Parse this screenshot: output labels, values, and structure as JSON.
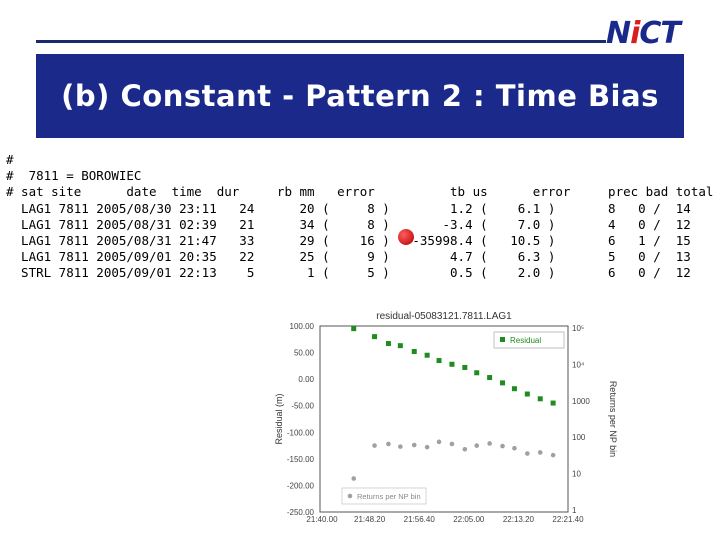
{
  "logo": {
    "text_pre": "N",
    "text_dot": "i",
    "text_post": "CT"
  },
  "title": "(b) Constant - Pattern 2 : Time Bias",
  "table_lines": [
    "#",
    "#  7811 = BOROWIEC",
    "# sat site      date  time  dur     rb mm   error          tb us      error     prec bad total",
    "  LAG1 7811 2005/08/30 23:11   24      20 (     8 )        1.2 (    6.1 )       8   0 /  14",
    "  LAG1 7811 2005/08/31 02:39   21      34 (     8 )       -3.4 (    7.0 )       4   0 /  12",
    "  LAG1 7811 2005/08/31 21:47   33      29 (    16 )   -35998.4 (   10.5 )       6   1 /  15",
    "  LAG1 7811 2005/09/01 20:35   22      25 (     9 )        4.7 (    6.3 )       5   0 /  13",
    "  STRL 7811 2005/09/01 22:13    5       1 (     5 )        0.5 (    2.0 )       6   0 /  12"
  ],
  "chart_data": {
    "type": "scatter",
    "title": "residual-05083121.7811.LAG1",
    "ylabel": "Residual (m)",
    "y2label": "Returns per NP bin",
    "xticks": [
      "21:40.00",
      "21:48.20",
      "21:56.40",
      "22:05.00",
      "22:13.20",
      "22:21.40"
    ],
    "yticks": [
      100,
      50,
      0,
      -50,
      -100,
      -150,
      -200,
      -250
    ],
    "y2ticks": [
      "10⁵",
      "10⁴",
      "1000",
      "100",
      "10",
      "1"
    ],
    "ylim": [
      -250,
      100
    ],
    "xlim": [
      0,
      2500
    ],
    "legend": {
      "residual": "Residual",
      "returns": "Returns per NP bin"
    },
    "colors": {
      "residual": "#1e8c1e",
      "returns": "#a0a0a0"
    },
    "series": [
      {
        "name": "Residual",
        "x": [
          340,
          550,
          690,
          810,
          950,
          1080,
          1200,
          1330,
          1460,
          1580,
          1710,
          1840,
          1960,
          2090,
          2220,
          2350
        ],
        "y": [
          95,
          80,
          67,
          63,
          52,
          45,
          35,
          28,
          22,
          12,
          3,
          -7,
          -18,
          -28,
          -37,
          -45
        ]
      },
      {
        "name": "Returns per NP bin",
        "x": [
          340,
          550,
          690,
          810,
          950,
          1080,
          1200,
          1330,
          1460,
          1580,
          1710,
          1840,
          1960,
          2090,
          2220,
          2350
        ],
        "y": [
          -187,
          -125,
          -122,
          -127,
          -124,
          -128,
          -118,
          -122,
          -132,
          -125,
          -121,
          -126,
          -130,
          -140,
          -138,
          -143
        ]
      }
    ]
  }
}
